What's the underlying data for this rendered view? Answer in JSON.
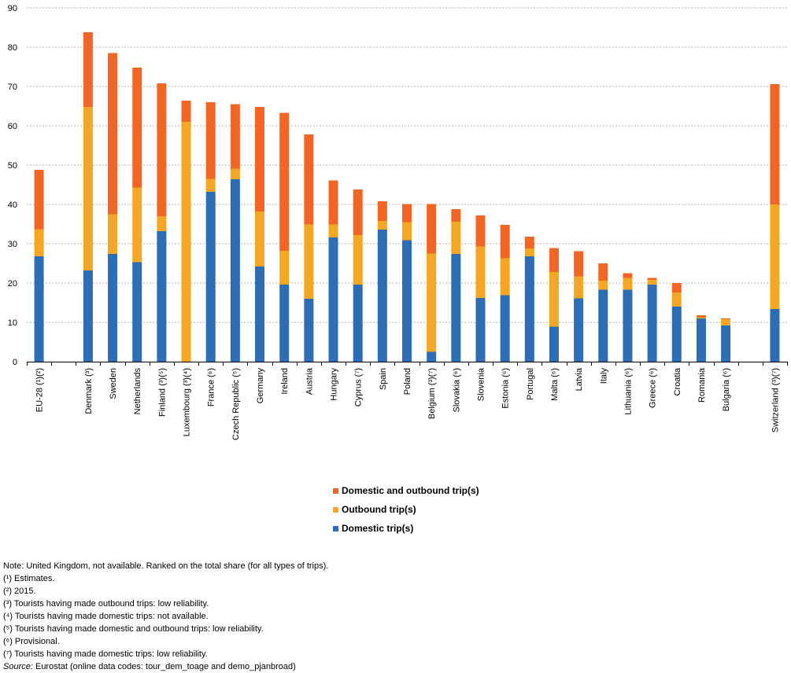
{
  "chart_data": {
    "type": "bar",
    "stacked": true,
    "ylim": [
      0,
      90
    ],
    "yticks": [
      0,
      10,
      20,
      30,
      40,
      50,
      60,
      70,
      80,
      90
    ],
    "grid": true,
    "legend_position": "bottom",
    "categories": [
      "EU-28 (¹)(²)",
      "Denmark (³)",
      "Sweden",
      "Netherlands",
      "Finland (³)(⁵)",
      "Luxembourg (³)(⁴)",
      "France (⁶)",
      "Czech Republic (⁵)",
      "Germany",
      "Ireland",
      "Austria",
      "Hungary",
      "Cyprus (⁷)",
      "Spain",
      "Poland",
      "Belgium (³)(⁷)",
      "Slovakia (⁶)",
      "Slovenia",
      "Estonia (⁶)",
      "Portugal",
      "Malta (⁶)",
      "Latvia",
      "Italy",
      "Lithuania (⁶)",
      "Greece (⁶)",
      "Croatia",
      "Romania",
      "Bulgaria (⁶)",
      "Switzerland (³)(⁷)"
    ],
    "gap_after": [
      0,
      27
    ],
    "series": [
      {
        "name": "Domestic trip(s)",
        "color": "#2d6db5",
        "values": [
          26.8,
          23.2,
          27.4,
          25.3,
          33.2,
          0,
          43.2,
          46.4,
          24.2,
          19.6,
          16.0,
          31.6,
          19.6,
          33.6,
          30.9,
          2.5,
          27.4,
          16.2,
          16.9,
          26.8,
          8.9,
          16.1,
          18.3,
          18.3,
          19.6,
          14.0,
          11.0,
          9.2,
          13.4
        ]
      },
      {
        "name": "Outbound trip(s)",
        "color": "#f5a623",
        "values": [
          6.9,
          41.6,
          10.1,
          19.0,
          3.8,
          61.0,
          3.3,
          2.7,
          14.0,
          8.6,
          18.9,
          3.3,
          12.6,
          2.2,
          4.6,
          25.0,
          8.2,
          13.1,
          9.4,
          2.0,
          13.9,
          5.6,
          2.3,
          3.0,
          1.2,
          3.6,
          0.3,
          1.6,
          26.6
        ]
      },
      {
        "name": "Domestic and outbound trip(s)",
        "color": "#f26522",
        "values": [
          15.1,
          19.0,
          41.0,
          30.5,
          33.8,
          5.4,
          19.5,
          16.4,
          26.6,
          35.1,
          22.9,
          11.2,
          11.6,
          5.0,
          4.6,
          12.6,
          3.2,
          7.9,
          8.5,
          3.0,
          6.1,
          6.4,
          4.4,
          1.2,
          0.5,
          2.4,
          0.5,
          0.2,
          30.6
        ]
      }
    ]
  },
  "legend": [
    {
      "label": "Domestic and outbound trip(s)",
      "color": "#f26522"
    },
    {
      "label": "Outbound trip(s)",
      "color": "#f5a623"
    },
    {
      "label": "Domestic trip(s)",
      "color": "#2d6db5"
    }
  ],
  "notes": {
    "lines": [
      "Note: United Kingdom, not available. Ranked on the total share (for all types of trips).",
      "(¹) Estimates.",
      "(²) 2015.",
      "(³) Tourists having made outbound trips: low reliability.",
      "(⁴) Tourists having made domestic trips: not available.",
      "(⁵) Tourists having made domestic and outbound trips: low reliability.",
      "(⁶) Provisional.",
      "(⁷) Tourists having made domestic trips: low reliability."
    ],
    "source_label": "Source:",
    "source_text": " Eurostat (online data codes: tour_dem_toage and demo_pjanbroad)"
  }
}
